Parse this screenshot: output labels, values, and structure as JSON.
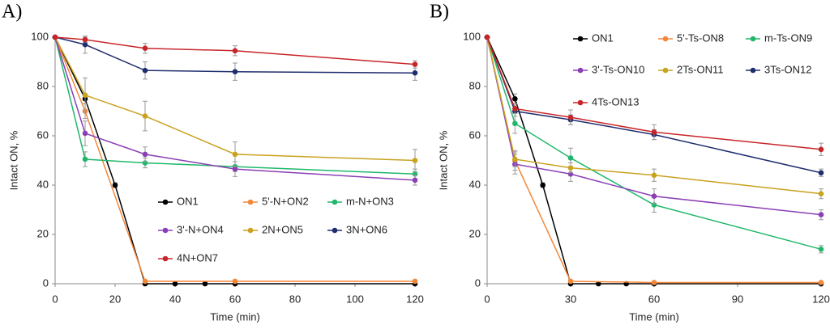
{
  "chart_data": [
    {
      "type": "line",
      "panel_label": "A)",
      "x_label": "Time (min)",
      "y_label": "Intact ON, %",
      "xlim": [
        0,
        120
      ],
      "xticks": [
        0,
        20,
        40,
        60,
        80,
        100,
        120
      ],
      "ylim": [
        0,
        100
      ],
      "yticks": [
        0,
        20,
        40,
        60,
        80,
        100
      ],
      "series": [
        {
          "name": "ON1",
          "color": "#000000",
          "x": [
            0,
            10,
            20,
            30,
            40,
            50,
            60,
            120
          ],
          "values": [
            100,
            75,
            40,
            0,
            0,
            0,
            0,
            0
          ],
          "errors": [
            0,
            2,
            1,
            0,
            0,
            0,
            0,
            0
          ]
        },
        {
          "name": "5'-N+ON2",
          "color": "#f4883a",
          "x": [
            0,
            10,
            30,
            60,
            120
          ],
          "values": [
            100,
            70,
            1,
            1,
            1
          ],
          "errors": [
            0,
            3,
            0.5,
            0.5,
            0.5
          ]
        },
        {
          "name": "m-N+ON3",
          "color": "#1fb86a",
          "x": [
            0,
            10,
            30,
            60,
            120
          ],
          "values": [
            100,
            50.5,
            49,
            47.5,
            44.5
          ],
          "errors": [
            0,
            3,
            2,
            2,
            2
          ]
        },
        {
          "name": "3'-N+ON4",
          "color": "#8a3fb5",
          "x": [
            0,
            10,
            30,
            60,
            120
          ],
          "values": [
            100,
            61,
            52.5,
            46.5,
            42
          ],
          "errors": [
            0,
            5,
            3,
            3,
            2
          ]
        },
        {
          "name": "2N+ON5",
          "color": "#c9a21e",
          "x": [
            0,
            10,
            30,
            60,
            120
          ],
          "values": [
            100,
            76.5,
            68,
            52.5,
            50
          ],
          "errors": [
            0,
            7,
            6,
            5,
            4.5
          ]
        },
        {
          "name": "3N+ON6",
          "color": "#1f2d6e",
          "x": [
            0,
            10,
            30,
            60,
            120
          ],
          "values": [
            100,
            97,
            86.5,
            86,
            85.5
          ],
          "errors": [
            0,
            3.5,
            3.5,
            3.5,
            3
          ]
        },
        {
          "name": "4N+ON7",
          "color": "#c8252a",
          "x": [
            0,
            10,
            30,
            60,
            120
          ],
          "values": [
            100,
            99,
            95.5,
            94.5,
            89
          ],
          "errors": [
            0,
            1,
            2,
            2,
            1.5
          ]
        }
      ]
    },
    {
      "type": "line",
      "panel_label": "B)",
      "x_label": "Time (min)",
      "y_label": "Intact ON, %",
      "xlim": [
        0,
        120
      ],
      "xticks": [
        0,
        30,
        60,
        90,
        120
      ],
      "ylim": [
        0,
        100
      ],
      "yticks": [
        0,
        20,
        40,
        60,
        80,
        100
      ],
      "series": [
        {
          "name": "ON1",
          "color": "#000000",
          "x": [
            0,
            10,
            20,
            30,
            40,
            50,
            60,
            120
          ],
          "values": [
            100,
            75,
            40,
            0,
            0,
            0,
            0,
            0
          ],
          "errors": [
            0,
            2,
            1,
            0,
            0,
            0,
            0,
            0
          ]
        },
        {
          "name": "5'-Ts-ON8",
          "color": "#f4883a",
          "x": [
            0,
            10,
            30,
            60,
            120
          ],
          "values": [
            100,
            50,
            1,
            0.5,
            0.5
          ],
          "errors": [
            0,
            4,
            0.5,
            0.5,
            0.5
          ]
        },
        {
          "name": "m-Ts-ON9",
          "color": "#1fb86a",
          "x": [
            0,
            10,
            30,
            60,
            120
          ],
          "values": [
            100,
            65,
            51,
            32,
            14
          ],
          "errors": [
            0,
            4,
            4,
            3,
            1.5
          ]
        },
        {
          "name": "3'-Ts-ON10",
          "color": "#8a3fb5",
          "x": [
            0,
            10,
            30,
            60,
            120
          ],
          "values": [
            100,
            48.5,
            44.5,
            35.5,
            28
          ],
          "errors": [
            0,
            4,
            3,
            3,
            2
          ]
        },
        {
          "name": "2Ts-ON11",
          "color": "#c9a21e",
          "x": [
            0,
            10,
            30,
            60,
            120
          ],
          "values": [
            100,
            50.5,
            47,
            44,
            36.5
          ],
          "errors": [
            0,
            3,
            2,
            2.5,
            2
          ]
        },
        {
          "name": "3Ts-ON12",
          "color": "#1f2d6e",
          "x": [
            0,
            10,
            30,
            60,
            120
          ],
          "values": [
            100,
            70,
            66.5,
            60.5,
            45
          ],
          "errors": [
            0,
            2,
            2,
            2,
            1.5
          ]
        },
        {
          "name": "4Ts-ON13",
          "color": "#c8252a",
          "x": [
            0,
            10,
            30,
            60,
            120
          ],
          "values": [
            100,
            71,
            67.5,
            61.5,
            54.5
          ],
          "errors": [
            0,
            2,
            3,
            3,
            2.5
          ]
        }
      ]
    }
  ]
}
